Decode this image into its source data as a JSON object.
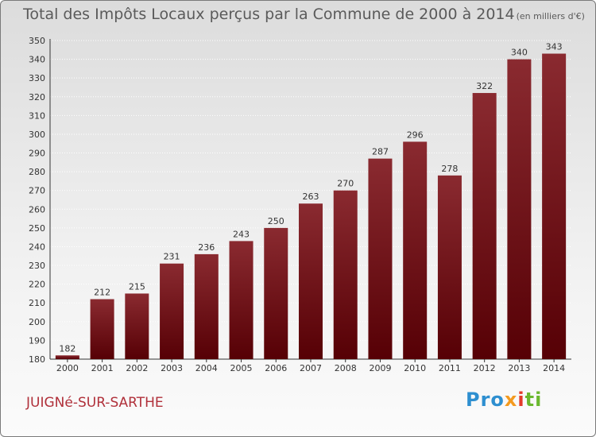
{
  "title": "Total des Impôts Locaux perçus par la Commune de 2000 à 2014",
  "unit": "(en milliers d'€)",
  "commune": "JUIGNé-SUR-SARTHE",
  "logo": {
    "part1": "Pro",
    "part2": "x",
    "part3": "i",
    "part4": "ti"
  },
  "colors": {
    "bar": "#6e1218",
    "bar_light": "#8a2a30",
    "title": "#5a5a5a",
    "commune": "#b0303a"
  },
  "chart_data": {
    "type": "bar",
    "title": "Total des Impôts Locaux perçus par la Commune de 2000 à 2014",
    "ylabel": "en milliers d'€",
    "xlabel": "",
    "categories": [
      "2000",
      "2001",
      "2002",
      "2003",
      "2004",
      "2005",
      "2006",
      "2007",
      "2008",
      "2009",
      "2010",
      "2011",
      "2012",
      "2013",
      "2014"
    ],
    "values": [
      182,
      212,
      215,
      231,
      236,
      243,
      250,
      263,
      270,
      287,
      296,
      278,
      322,
      340,
      343
    ],
    "ylim": [
      180,
      350
    ],
    "yticks": [
      180,
      190,
      200,
      210,
      220,
      230,
      240,
      250,
      260,
      270,
      280,
      290,
      300,
      310,
      320,
      330,
      340,
      350
    ],
    "grid": true
  }
}
